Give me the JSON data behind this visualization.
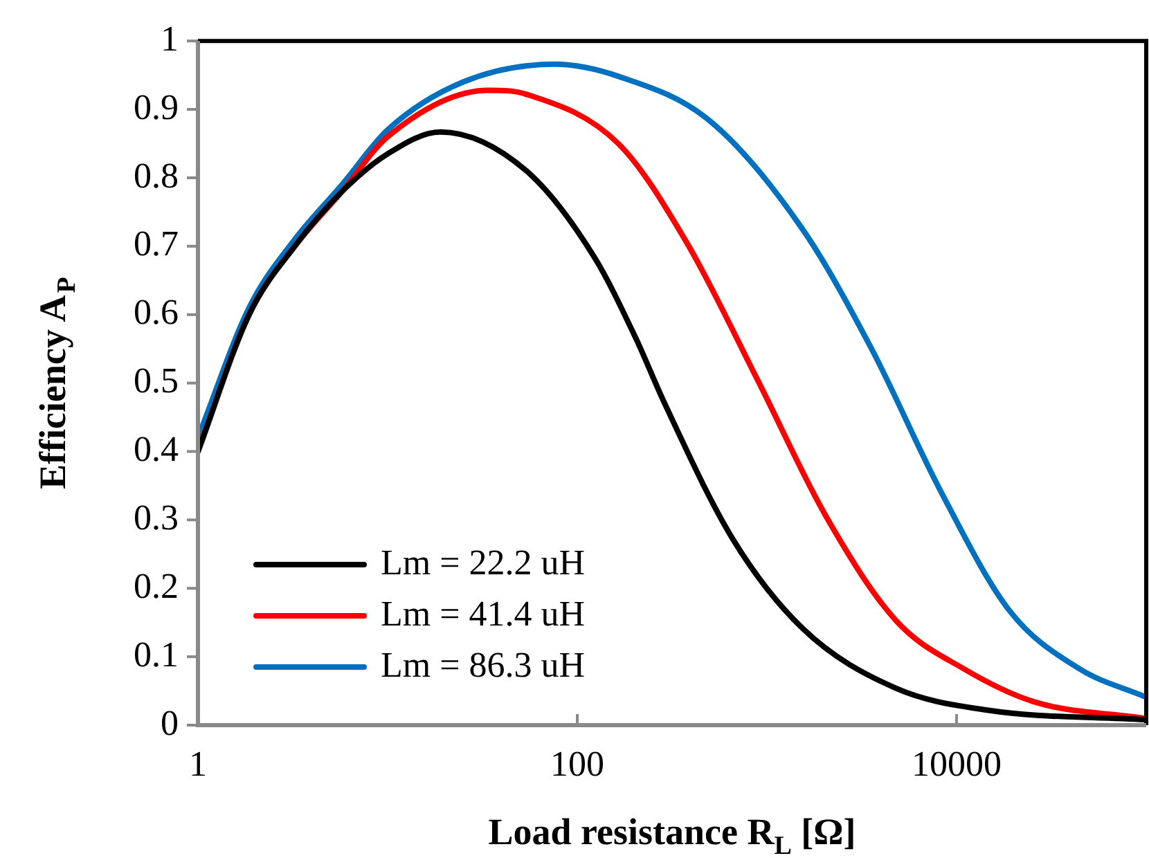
{
  "chart_data": {
    "type": "line",
    "xlabel": "Load resistance R$_{L}$ [Ω]",
    "ylabel": "Efficiency A$_{P}$",
    "log": "x",
    "xlim": [
      1,
      100000
    ],
    "xticks": [
      1,
      100,
      10000
    ],
    "ylim": [
      0,
      1
    ],
    "yticks": [
      0,
      0.1,
      0.2,
      0.3,
      0.4,
      0.5,
      0.6,
      0.7,
      0.8,
      0.9,
      1
    ],
    "grid": false,
    "legend": "bottom left",
    "marker": "none",
    "line_style": "solid",
    "series": [
      {
        "name": "Lm = 22.2 uH",
        "color": "#000000",
        "x": [
          1,
          1.86,
          3.24,
          5.75,
          10,
          19,
          54,
          123,
          204,
          288,
          661,
          1549,
          4786,
          14454,
          97700
        ],
        "values": [
          0.4,
          0.6,
          0.7,
          0.78,
          0.835,
          0.867,
          0.81,
          0.684,
          0.565,
          0.471,
          0.272,
          0.141,
          0.054,
          0.022,
          0.008
        ]
      },
      {
        "name": "Lm = 41.4 uH",
        "color": "#ff0000",
        "x": [
          1,
          1.86,
          3.24,
          5.75,
          10,
          34,
          54,
          166,
          380,
          891,
          2042,
          4786,
          10965,
          25700,
          97700
        ],
        "values": [
          0.4,
          0.6,
          0.7,
          0.78,
          0.86,
          0.928,
          0.922,
          0.849,
          0.704,
          0.505,
          0.306,
          0.153,
          0.082,
          0.034,
          0.01
        ]
      },
      {
        "name": "Lm = 86.3 uH",
        "color": "#0070c0",
        "x": [
          1,
          1.86,
          3.24,
          5.75,
          10,
          25,
          76,
          166,
          501,
          1549,
          3548,
          8318,
          19055,
          44668,
          97700
        ],
        "values": [
          0.42,
          0.61,
          0.71,
          0.79,
          0.87,
          0.94,
          0.966,
          0.948,
          0.883,
          0.724,
          0.551,
          0.34,
          0.167,
          0.082,
          0.042
        ]
      }
    ]
  }
}
